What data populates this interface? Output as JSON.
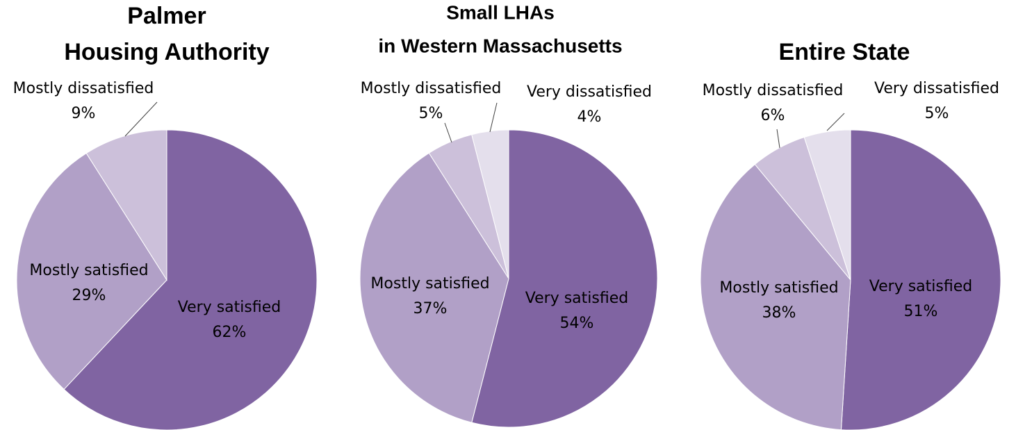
{
  "chart_data": [
    {
      "type": "pie",
      "title": [
        "Palmer",
        "Housing Authority"
      ],
      "categories": [
        "Very satisfied",
        "Mostly satisfied",
        "Mostly dissatisfied"
      ],
      "values": [
        62,
        29,
        9
      ],
      "value_labels": [
        "62%",
        "29%",
        "9%"
      ],
      "colors": [
        "#8064a2",
        "#b1a0c7",
        "#ccc0da"
      ]
    },
    {
      "type": "pie",
      "title": [
        "Small LHAs",
        "in Western Massachusetts"
      ],
      "categories": [
        "Very satisfied",
        "Mostly satisfied",
        "Mostly dissatisfied",
        "Very dissatisfied"
      ],
      "values": [
        54,
        37,
        5,
        4
      ],
      "value_labels": [
        "54%",
        "37%",
        "5%",
        "4%"
      ],
      "colors": [
        "#8064a2",
        "#b1a0c7",
        "#ccc0da",
        "#e4dfec"
      ]
    },
    {
      "type": "pie",
      "title": [
        "Entire State"
      ],
      "categories": [
        "Very satisfied",
        "Mostly satisfied",
        "Mostly dissatisfied",
        "Very dissatisfied"
      ],
      "values": [
        51,
        38,
        6,
        5
      ],
      "value_labels": [
        "51%",
        "38%",
        "6%",
        "5%"
      ],
      "colors": [
        "#8064a2",
        "#b1a0c7",
        "#ccc0da",
        "#e4dfec"
      ]
    }
  ]
}
